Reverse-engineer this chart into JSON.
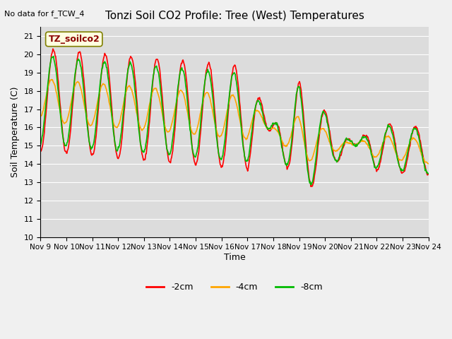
{
  "title": "Tonzi Soil CO2 Profile: Tree (West) Temperatures",
  "subtitle": "No data for f_TCW_4",
  "ylabel": "Soil Temperature (C)",
  "xlabel": "Time",
  "ylim": [
    10.0,
    21.5
  ],
  "yticks": [
    10.0,
    11.0,
    12.0,
    13.0,
    14.0,
    15.0,
    16.0,
    17.0,
    18.0,
    19.0,
    20.0,
    21.0
  ],
  "xtick_labels": [
    "Nov 9",
    "Nov 10",
    "Nov 11",
    "Nov 12",
    "Nov 13",
    "Nov 14",
    "Nov 15",
    "Nov 16",
    "Nov 17",
    "Nov 18",
    "Nov 19",
    "Nov 20",
    "Nov 21",
    "Nov 22",
    "Nov 23",
    "Nov 24"
  ],
  "legend_label": "TZ_soilco2",
  "series_labels": [
    "-2cm",
    "-4cm",
    "-8cm"
  ],
  "colors": [
    "#ff0000",
    "#ffa500",
    "#00bb00"
  ],
  "fig_bg_color": "#f0f0f0",
  "plot_bg_color": "#dcdcdc",
  "grid_color": "#ffffff",
  "linewidth": 1.2
}
